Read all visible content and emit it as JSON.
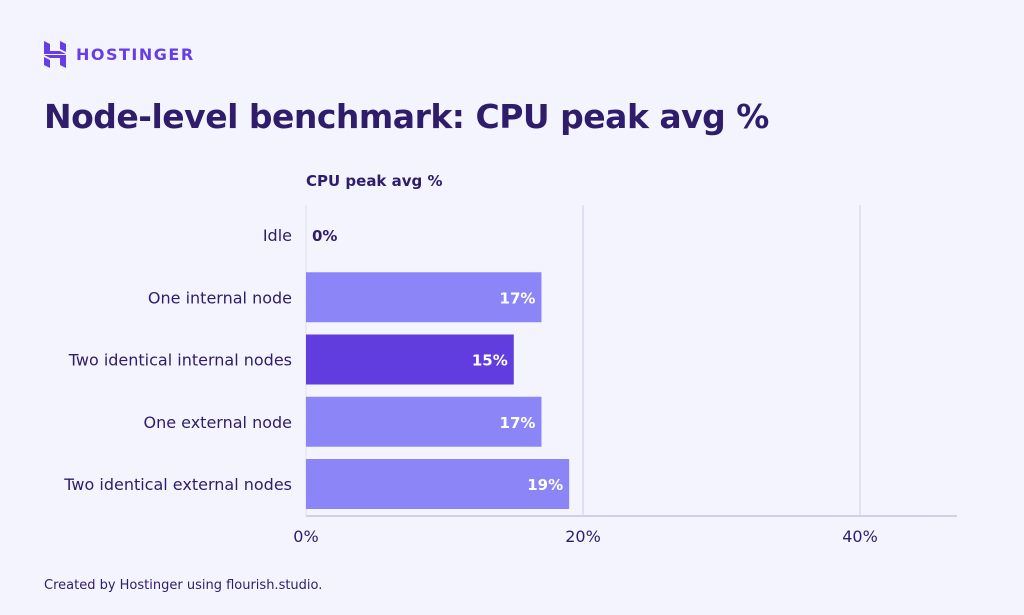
{
  "brand": {
    "name": "HOSTINGER",
    "color": "#673de6"
  },
  "title": "Node-level benchmark: CPU peak avg %",
  "footer": "Created by Hostinger using flourish.studio.",
  "chart_data": {
    "type": "bar",
    "orientation": "horizontal",
    "series_label": "CPU peak avg %",
    "categories": [
      "Idle",
      "One internal node",
      "Two identical internal nodes",
      "One external node",
      "Two identical external nodes"
    ],
    "values": [
      0,
      17,
      15,
      17,
      19
    ],
    "data_labels": [
      "0%",
      "17%",
      "15%",
      "17%",
      "19%"
    ],
    "colors": [
      "#8c85f7",
      "#8c85f7",
      "#613ddf",
      "#8c85f7",
      "#8c85f7"
    ],
    "xlim": [
      0,
      47
    ],
    "xticks": [
      0,
      20,
      40
    ],
    "xtick_labels": [
      "0%",
      "20%",
      "40%"
    ],
    "grid": true
  }
}
